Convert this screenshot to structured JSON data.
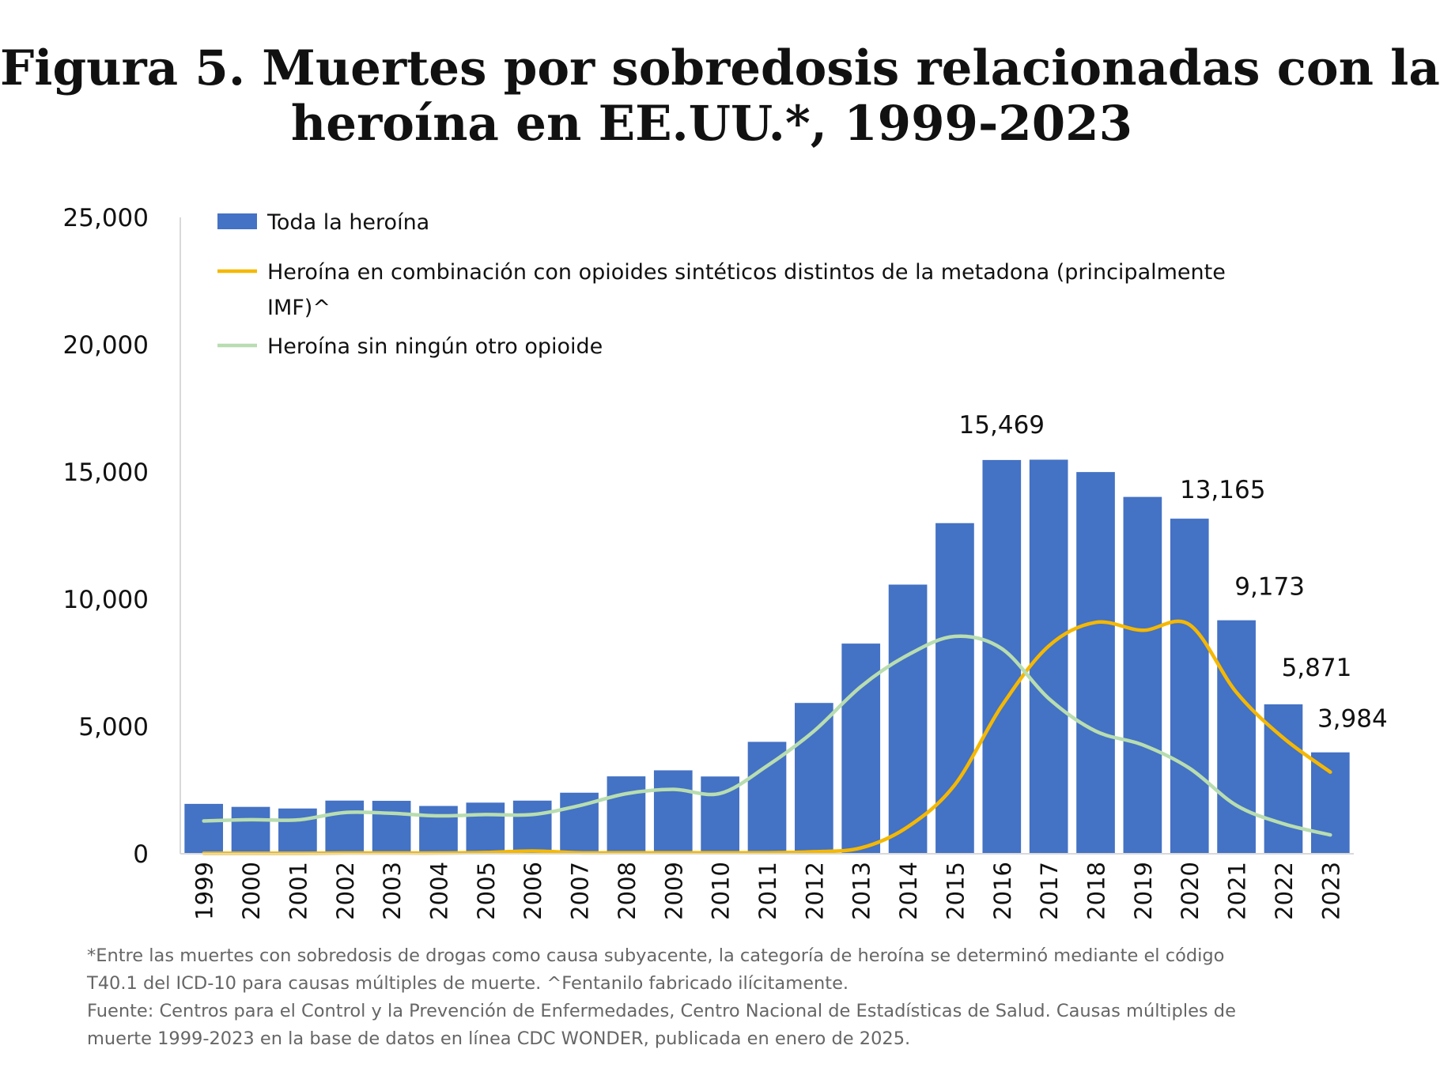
{
  "figure": {
    "title_line1": "Figura 5. Muertes por sobredosis relacionadas con la",
    "title_line2": "heroína en EE.UU.*, 1999-2023"
  },
  "chart_data": {
    "type": "bar",
    "categories": [
      "1999",
      "2000",
      "2001",
      "2002",
      "2003",
      "2004",
      "2005",
      "2006",
      "2007",
      "2008",
      "2009",
      "2010",
      "2011",
      "2012",
      "2013",
      "2014",
      "2015",
      "2016",
      "2017",
      "2018",
      "2019",
      "2020",
      "2021",
      "2022",
      "2023"
    ],
    "series": [
      {
        "name": "Toda la heroína",
        "type": "bar",
        "color": "#4472C4",
        "values": [
          1960,
          1842,
          1779,
          2089,
          2080,
          1878,
          2009,
          2088,
          2399,
          3041,
          3278,
          3036,
          4397,
          5925,
          8257,
          10574,
          12989,
          15469,
          15482,
          14996,
          14019,
          13165,
          9173,
          5871,
          3984
        ]
      },
      {
        "name": "Heroína en combinación con opioides sintéticos distintos de la metadona (principalmente IMF)^",
        "type": "line",
        "color": "#F5B800",
        "values": [
          20,
          20,
          20,
          30,
          30,
          30,
          50,
          110,
          40,
          40,
          40,
          40,
          40,
          80,
          230,
          1060,
          2710,
          5810,
          8160,
          9090,
          8780,
          9000,
          6340,
          4550,
          3210
        ]
      },
      {
        "name": "Heroína sin ningún otro opioide",
        "type": "line",
        "color": "#B8DDB0",
        "values": [
          1290,
          1340,
          1330,
          1620,
          1590,
          1490,
          1540,
          1540,
          1890,
          2360,
          2530,
          2370,
          3450,
          4820,
          6570,
          7810,
          8540,
          8060,
          6100,
          4820,
          4280,
          3360,
          1900,
          1180,
          740
        ]
      }
    ],
    "data_labels": [
      {
        "category": "2016",
        "text": "15,469"
      },
      {
        "category": "2020",
        "text": "13,165"
      },
      {
        "category": "2021",
        "text": "9,173"
      },
      {
        "category": "2022",
        "text": "5,871"
      },
      {
        "category": "2023",
        "text": "3,984"
      }
    ],
    "ylim": [
      0,
      25000
    ],
    "yticks": [
      0,
      5000,
      10000,
      15000,
      20000,
      25000
    ],
    "ytick_labels": [
      "0",
      "5,000",
      "10,000",
      "15,000",
      "20,000",
      "25,000"
    ],
    "legend": {
      "placement": "top-left",
      "entries": [
        {
          "label_lines": [
            "Toda la heroína"
          ],
          "color": "#4472C4",
          "marker": "bar"
        },
        {
          "label_lines": [
            "Heroína en combinación con opioides sintéticos distintos de la metadona (principalmente",
            "IMF)^"
          ],
          "color": "#F5B800",
          "marker": "line"
        },
        {
          "label_lines": [
            "Heroína sin ningún otro opioide"
          ],
          "color": "#B8DDB0",
          "marker": "line"
        }
      ]
    },
    "grid": false
  },
  "footnote": {
    "line1": "*Entre las muertes con sobredosis de drogas como causa subyacente, la categoría de heroína se determinó mediante el código",
    "line2": "T40.1 del ICD-10 para causas múltiples de muerte. ^Fentanilo fabricado ilícitamente.",
    "line3": "Fuente: Centros para el Control y la Prevención de Enfermedades, Centro Nacional de Estadísticas de Salud. Causas múltiples de",
    "line4": "muerte 1999-2023 en la base de datos en línea CDC WONDER, publicada en enero de 2025."
  }
}
